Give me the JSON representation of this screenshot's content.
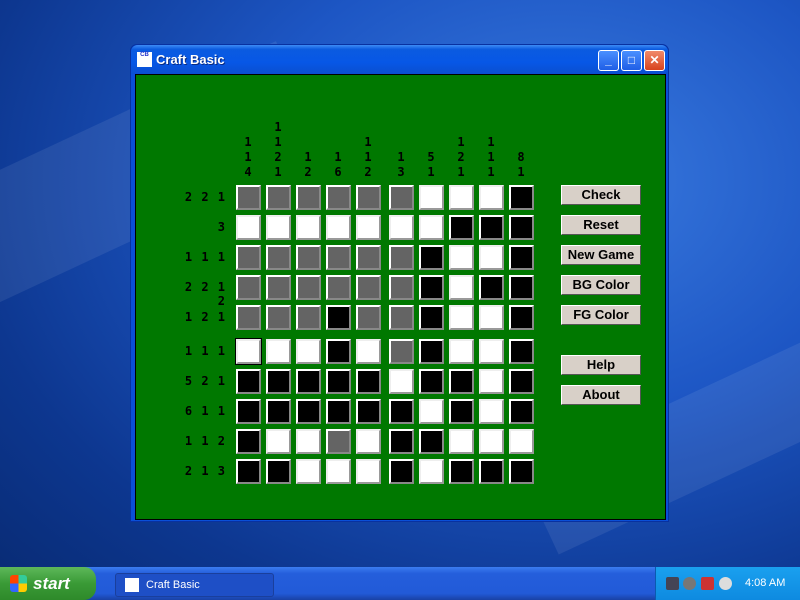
{
  "window": {
    "title": "Craft Basic",
    "app_icon": "CB"
  },
  "puzzle": {
    "column_clues": [
      [
        "1",
        "1",
        "4"
      ],
      [
        "1",
        "1",
        "2",
        "1"
      ],
      [
        "1",
        "2"
      ],
      [
        "1",
        "6"
      ],
      [
        "1",
        "1",
        "2"
      ],
      [
        "1",
        "3"
      ],
      [
        "5",
        "1"
      ],
      [
        "1",
        "2",
        "1"
      ],
      [
        "1",
        "1",
        "1"
      ],
      [
        "8",
        "1"
      ]
    ],
    "row_clues": [
      "2 2 1",
      "3",
      "1 1 1",
      "2 2 1 2",
      "1 2 1",
      "1 1 1",
      "5 2 1",
      "6 1 1",
      "1 1 2",
      "2 1 3"
    ],
    "cell_states_legend": {
      "B": "filled black",
      "W": "white",
      "G": "gray (unrevealed)"
    },
    "grid": [
      "GGGGGGWWWB",
      "WWWWWWWBBB",
      "GGGGGGBWWB",
      "GGGGGGBWBB",
      "GGGBGGBWWB",
      "WWWBWGBWWB",
      "BBBBBWBBWB",
      "BBBBBBWBWB",
      "BWWGWBBWWW",
      "BBWWWBWBBB"
    ],
    "focused_cell": [
      5,
      0
    ],
    "colors": {
      "background": "#007800",
      "filled": "#000000",
      "empty": "#ffffff",
      "unrevealed": "#646464"
    }
  },
  "buttons": {
    "check": "Check",
    "reset": "Reset",
    "new_game": "New Game",
    "bg_color": "BG Color",
    "fg_color": "FG Color",
    "help": "Help",
    "about": "About"
  },
  "taskbar": {
    "start": "start",
    "task": "Craft Basic",
    "clock": "4:08 AM"
  }
}
